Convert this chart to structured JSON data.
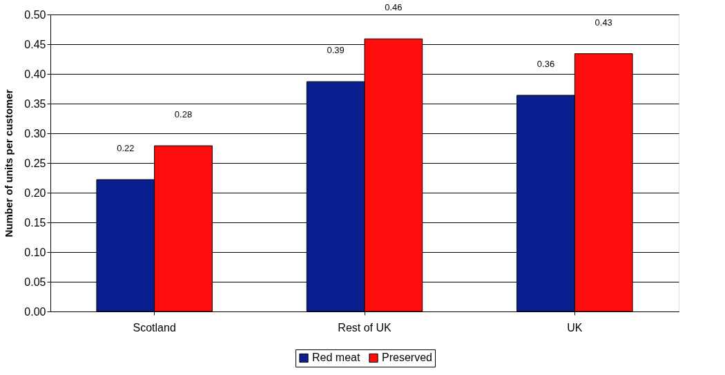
{
  "chart_data": {
    "type": "bar",
    "ylabel": "Number of units per customer",
    "categories": [
      "Scotland",
      "Rest of UK",
      "UK"
    ],
    "series": [
      {
        "name": "Red meat",
        "color": "#0a1f8f",
        "values": [
          0.222,
          0.387,
          0.364
        ],
        "value_labels": [
          "0.22",
          "0.39",
          "0.36"
        ]
      },
      {
        "name": "Preserved",
        "color": "#ff0d0d",
        "values": [
          0.279,
          0.459,
          0.434
        ],
        "value_labels": [
          "0.28",
          "0.46",
          "0.43"
        ]
      }
    ],
    "ylim": [
      0,
      0.5
    ],
    "yticks": [
      {
        "value": 0,
        "label": "0.00"
      },
      {
        "value": 0.05,
        "label": "0.05"
      },
      {
        "value": 0.1,
        "label": "0.10"
      },
      {
        "value": 0.15,
        "label": "0.15"
      },
      {
        "value": 0.2,
        "label": "0.20"
      },
      {
        "value": 0.25,
        "label": "0.25"
      },
      {
        "value": 0.3,
        "label": "0.30"
      },
      {
        "value": 0.35,
        "label": "0.35"
      },
      {
        "value": 0.4,
        "label": "0.40"
      },
      {
        "value": 0.45,
        "label": "0.45"
      },
      {
        "value": 0.5,
        "label": "0.50"
      }
    ],
    "grid": "y",
    "legend": "bottom"
  }
}
